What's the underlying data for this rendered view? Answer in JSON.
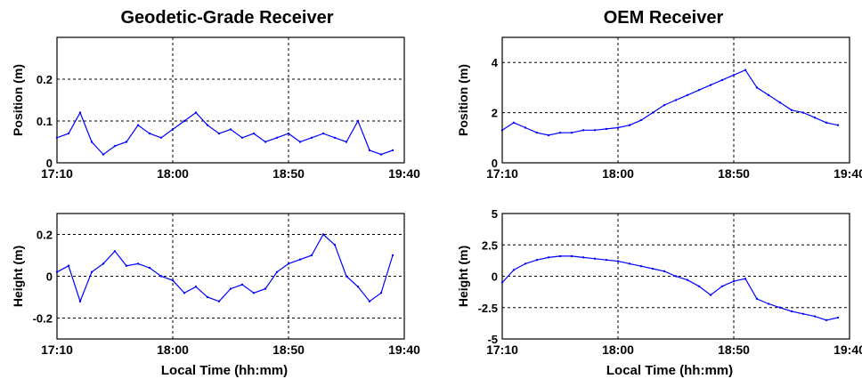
{
  "figure": {
    "titles": [
      "Geodetic-Grade  Receiver",
      "OEM Receiver"
    ],
    "xlabel": "Local Time (hh:mm)"
  },
  "chart_data": [
    {
      "type": "line",
      "title": "Geodetic-Grade  Receiver",
      "xlabel": "",
      "ylabel": "Position (m)",
      "xlim": [
        "17:10",
        "19:40"
      ],
      "ylim": [
        0,
        0.3
      ],
      "xticks": [
        "17:10",
        "18:00",
        "18:50",
        "19:40"
      ],
      "yticks": [
        {
          "v": 0,
          "label": "0"
        },
        {
          "v": 0.1,
          "label": "0.1"
        },
        {
          "v": 0.2,
          "label": "0.2"
        }
      ],
      "grid": true,
      "color": "#0000ff",
      "series": [
        {
          "x": [
            "17:10",
            "17:15",
            "17:20",
            "17:25",
            "17:30",
            "17:35",
            "17:40",
            "17:45",
            "17:50",
            "17:55",
            "18:00",
            "18:05",
            "18:10",
            "18:15",
            "18:20",
            "18:25",
            "18:30",
            "18:35",
            "18:40",
            "18:45",
            "18:50",
            "18:55",
            "19:00",
            "19:05",
            "19:10",
            "19:15",
            "19:20",
            "19:25",
            "19:30",
            "19:35"
          ],
          "y": [
            0.06,
            0.07,
            0.12,
            0.05,
            0.02,
            0.04,
            0.05,
            0.09,
            0.07,
            0.06,
            0.08,
            0.1,
            0.12,
            0.09,
            0.07,
            0.08,
            0.06,
            0.07,
            0.05,
            0.06,
            0.07,
            0.05,
            0.06,
            0.07,
            0.06,
            0.05,
            0.1,
            0.03,
            0.02,
            0.03
          ]
        }
      ]
    },
    {
      "type": "line",
      "title": "OEM Receiver",
      "xlabel": "",
      "ylabel": "Position (m)",
      "xlim": [
        "17:10",
        "19:40"
      ],
      "ylim": [
        0,
        5
      ],
      "xticks": [
        "17:10",
        "18:00",
        "18:50",
        "19:40"
      ],
      "yticks": [
        {
          "v": 0,
          "label": "0"
        },
        {
          "v": 2,
          "label": "2"
        },
        {
          "v": 4,
          "label": "4"
        }
      ],
      "grid": true,
      "color": "#0000ff",
      "series": [
        {
          "x": [
            "17:10",
            "17:15",
            "17:20",
            "17:25",
            "17:30",
            "17:35",
            "17:40",
            "17:45",
            "17:50",
            "17:55",
            "18:00",
            "18:05",
            "18:10",
            "18:15",
            "18:20",
            "18:25",
            "18:30",
            "18:35",
            "18:40",
            "18:45",
            "18:50",
            "18:55",
            "19:00",
            "19:05",
            "19:10",
            "19:15",
            "19:20",
            "19:25",
            "19:30",
            "19:35"
          ],
          "y": [
            1.3,
            1.6,
            1.4,
            1.2,
            1.1,
            1.2,
            1.2,
            1.3,
            1.3,
            1.35,
            1.4,
            1.5,
            1.7,
            2.0,
            2.3,
            2.5,
            2.7,
            2.9,
            3.1,
            3.3,
            3.5,
            3.7,
            3.0,
            2.7,
            2.4,
            2.1,
            2.0,
            1.8,
            1.6,
            1.5
          ]
        }
      ]
    },
    {
      "type": "line",
      "title": "",
      "xlabel": "Local Time (hh:mm)",
      "ylabel": "Height (m)",
      "xlim": [
        "17:10",
        "19:40"
      ],
      "ylim": [
        -0.3,
        0.3
      ],
      "xticks": [
        "17:10",
        "18:00",
        "18:50",
        "19:40"
      ],
      "yticks": [
        {
          "v": -0.2,
          "label": "-0.2"
        },
        {
          "v": 0,
          "label": "0"
        },
        {
          "v": 0.2,
          "label": "0.2"
        }
      ],
      "grid": true,
      "color": "#0000ff",
      "series": [
        {
          "x": [
            "17:10",
            "17:15",
            "17:20",
            "17:25",
            "17:30",
            "17:35",
            "17:40",
            "17:45",
            "17:50",
            "17:55",
            "18:00",
            "18:05",
            "18:10",
            "18:15",
            "18:20",
            "18:25",
            "18:30",
            "18:35",
            "18:40",
            "18:45",
            "18:50",
            "18:55",
            "19:00",
            "19:05",
            "19:10",
            "19:15",
            "19:20",
            "19:25",
            "19:30",
            "19:35"
          ],
          "y": [
            0.02,
            0.05,
            -0.12,
            0.02,
            0.06,
            0.12,
            0.05,
            0.06,
            0.04,
            0.0,
            -0.02,
            -0.08,
            -0.05,
            -0.1,
            -0.12,
            -0.06,
            -0.04,
            -0.08,
            -0.06,
            0.02,
            0.06,
            0.08,
            0.1,
            0.2,
            0.15,
            0.0,
            -0.05,
            -0.12,
            -0.08,
            0.1
          ]
        }
      ]
    },
    {
      "type": "line",
      "title": "",
      "xlabel": "Local Time (hh:mm)",
      "ylabel": "Height (m)",
      "xlim": [
        "17:10",
        "19:40"
      ],
      "ylim": [
        -5,
        5
      ],
      "xticks": [
        "17:10",
        "18:00",
        "18:50",
        "19:40"
      ],
      "yticks": [
        {
          "v": -5,
          "label": "-5"
        },
        {
          "v": -2.5,
          "label": "-2.5"
        },
        {
          "v": 0,
          "label": "0"
        },
        {
          "v": 2.5,
          "label": "2.5"
        },
        {
          "v": 5,
          "label": "5"
        }
      ],
      "grid": true,
      "color": "#0000ff",
      "series": [
        {
          "x": [
            "17:10",
            "17:15",
            "17:20",
            "17:25",
            "17:30",
            "17:35",
            "17:40",
            "17:45",
            "17:50",
            "17:55",
            "18:00",
            "18:05",
            "18:10",
            "18:15",
            "18:20",
            "18:25",
            "18:30",
            "18:35",
            "18:40",
            "18:45",
            "18:50",
            "18:55",
            "19:00",
            "19:05",
            "19:10",
            "19:15",
            "19:20",
            "19:25",
            "19:30",
            "19:35"
          ],
          "y": [
            -0.5,
            0.5,
            1.0,
            1.3,
            1.5,
            1.6,
            1.6,
            1.5,
            1.4,
            1.3,
            1.2,
            1.0,
            0.8,
            0.6,
            0.4,
            0.0,
            -0.3,
            -0.8,
            -1.5,
            -0.8,
            -0.4,
            -0.2,
            -1.8,
            -2.2,
            -2.5,
            -2.8,
            -3.0,
            -3.2,
            -3.5,
            -3.3
          ]
        }
      ]
    }
  ]
}
